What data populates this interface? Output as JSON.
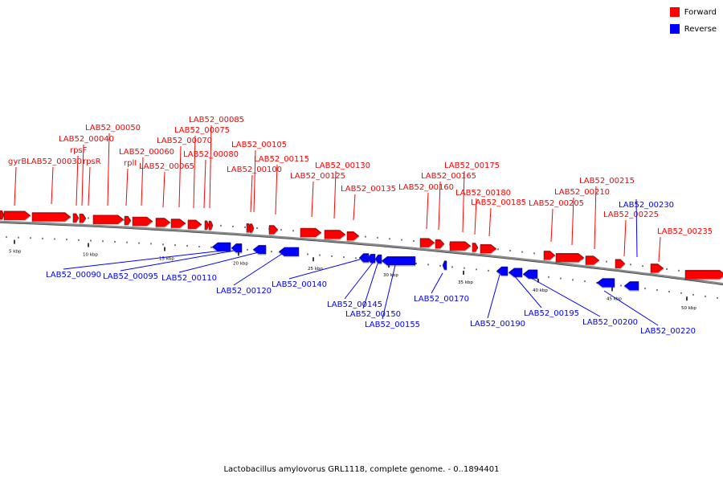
{
  "legend": {
    "forward_label": "Forward",
    "reverse_label": "Reverse",
    "forward_color": "#ff0000",
    "reverse_color": "#0000ff"
  },
  "caption": "Lactobacillus amylovorus GRL1118, complete genome. - 0..1894401",
  "colors": {
    "forward": "#ff0000",
    "reverse": "#0000ff",
    "backbone": "#808080"
  },
  "scale_labels": [
    "5 kbp",
    "10 kbp",
    "15 kbp",
    "20 kbp",
    "25 kbp",
    "30 kbp",
    "35 kbp",
    "40 kbp",
    "45 kbp",
    "50 kbp"
  ],
  "forward_labels": [
    "gyrB",
    "LAB52_00030",
    "rpsF",
    "LAB52_00040",
    "rpsR",
    "LAB52_00050",
    "rplI",
    "LAB52_00060",
    "LAB52_00065",
    "LAB52_00070",
    "LAB52_00075",
    "LAB52_00080",
    "LAB52_00085",
    "LAB52_00100",
    "LAB52_00105",
    "LAB52_00115",
    "LAB52_00125",
    "LAB52_00130",
    "LAB52_00135",
    "LAB52_00160",
    "LAB52_00165",
    "LAB52_00175",
    "LAB52_00180",
    "LAB52_00185",
    "LAB52_00205",
    "LAB52_00210",
    "LAB52_00215",
    "LAB52_00225",
    "LAB52_00235"
  ],
  "reverse_labels": [
    "LAB52_00090",
    "LAB52_00095",
    "LAB52_00110",
    "LAB52_00120",
    "LAB52_00140",
    "LAB52_00145",
    "LAB52_00150",
    "LAB52_00155",
    "LAB52_00170",
    "LAB52_00190",
    "LAB52_00195",
    "LAB52_00200",
    "LAB52_00220",
    "LAB52_00230"
  ]
}
